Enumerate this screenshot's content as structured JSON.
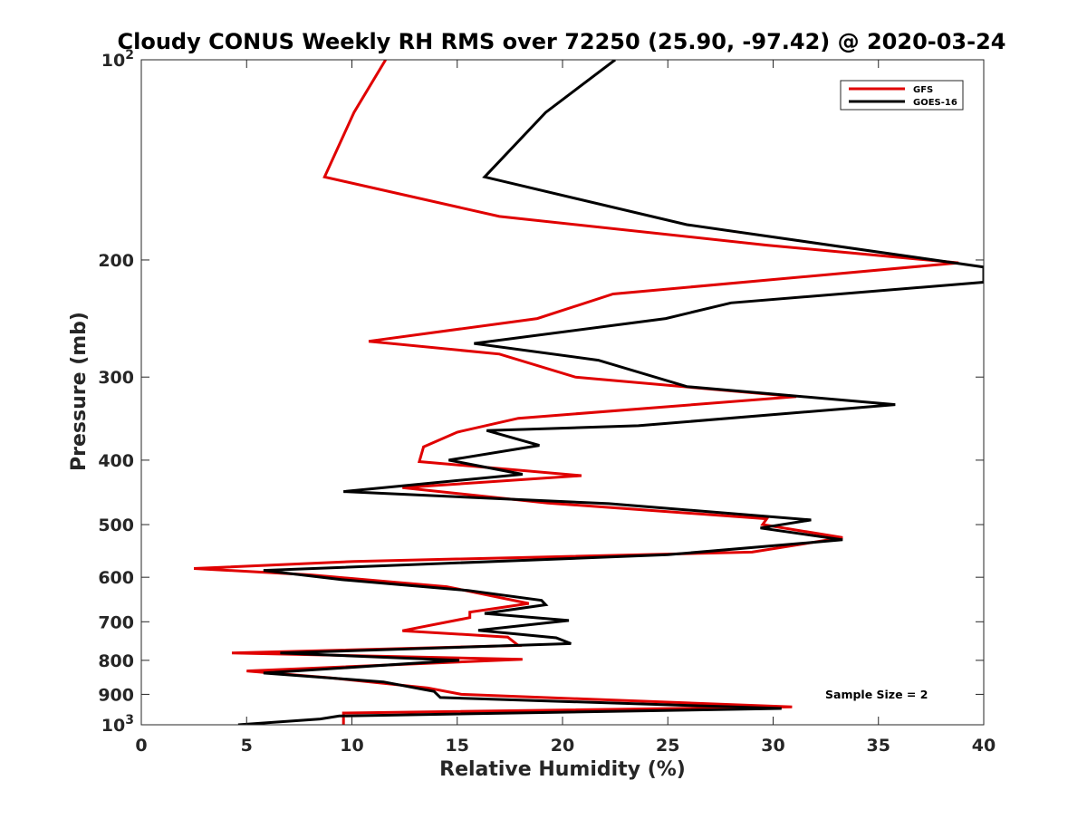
{
  "chart_data": {
    "type": "line",
    "title": "Cloudy CONUS Weekly RH RMS over 72250 (25.90, -97.42) @ 2020-03-24",
    "xlabel": "Relative Humidity (%)",
    "ylabel": "Pressure (mb)",
    "xlim": [
      0,
      40
    ],
    "ylim": [
      100,
      1000
    ],
    "y_scale": "log",
    "y_reversed": true,
    "x_ticks": [
      "0",
      "5",
      "10",
      "15",
      "20",
      "25",
      "30",
      "35",
      "40"
    ],
    "y_ticks": [
      {
        "value": 100,
        "label": "10",
        "sup": "2"
      },
      {
        "value": 200,
        "label": "200",
        "sup": ""
      },
      {
        "value": 300,
        "label": "300",
        "sup": ""
      },
      {
        "value": 400,
        "label": "400",
        "sup": ""
      },
      {
        "value": 500,
        "label": "500",
        "sup": ""
      },
      {
        "value": 600,
        "label": "600",
        "sup": ""
      },
      {
        "value": 700,
        "label": "700",
        "sup": ""
      },
      {
        "value": 800,
        "label": "800",
        "sup": ""
      },
      {
        "value": 900,
        "label": "900",
        "sup": ""
      },
      {
        "value": 1000,
        "label": "10",
        "sup": "3"
      }
    ],
    "grid": false,
    "legend_position": "top-right",
    "annotation": "Sample Size = 2",
    "series": [
      {
        "name": "GFS",
        "color": "#e00000",
        "points": [
          [
            11.6,
            100
          ],
          [
            10.1,
            120
          ],
          [
            8.7,
            150
          ],
          [
            17,
            172
          ],
          [
            29.7,
            190
          ],
          [
            38.8,
            202
          ],
          [
            22.4,
            225
          ],
          [
            18.8,
            245
          ],
          [
            10.8,
            265
          ],
          [
            17,
            277
          ],
          [
            20.6,
            300
          ],
          [
            31.1,
            321
          ],
          [
            17.9,
            346
          ],
          [
            15,
            363
          ],
          [
            13.4,
            382
          ],
          [
            13.2,
            402
          ],
          [
            20.9,
            422
          ],
          [
            12.4,
            440
          ],
          [
            19.3,
            464
          ],
          [
            29.7,
            490
          ],
          [
            29.5,
            500
          ],
          [
            33.3,
            523
          ],
          [
            29,
            550
          ],
          [
            10.1,
            568
          ],
          [
            2.5,
            582
          ],
          [
            8,
            595
          ],
          [
            14.5,
            620
          ],
          [
            18.4,
            657
          ],
          [
            15.6,
            677
          ],
          [
            15.6,
            690
          ],
          [
            12.4,
            722
          ],
          [
            17.4,
            738
          ],
          [
            17.9,
            760
          ],
          [
            4.3,
            780
          ],
          [
            18.1,
            797
          ],
          [
            5,
            830
          ],
          [
            9,
            850
          ],
          [
            13.6,
            880
          ],
          [
            15.2,
            900
          ],
          [
            30.9,
            940
          ],
          [
            9.6,
            960
          ],
          [
            9.6,
            1000
          ]
        ]
      },
      {
        "name": "GOES-16",
        "color": "#000000",
        "points": [
          [
            22.5,
            100
          ],
          [
            19.2,
            120
          ],
          [
            16.3,
            150
          ],
          [
            25.9,
            177
          ],
          [
            40,
            205
          ],
          [
            40,
            216
          ],
          [
            28,
            232
          ],
          [
            24.9,
            245
          ],
          [
            15.8,
            267
          ],
          [
            21.7,
            283
          ],
          [
            25.9,
            310
          ],
          [
            35.8,
            330
          ],
          [
            23.6,
            355
          ],
          [
            16.4,
            361
          ],
          [
            18.9,
            380
          ],
          [
            14.6,
            400
          ],
          [
            18.1,
            420
          ],
          [
            9.6,
            446
          ],
          [
            22.2,
            465
          ],
          [
            31.8,
            492
          ],
          [
            29.4,
            506
          ],
          [
            33.3,
            527
          ],
          [
            25,
            555
          ],
          [
            5.8,
            586
          ],
          [
            9.5,
            605
          ],
          [
            15.5,
            628
          ],
          [
            19,
            650
          ],
          [
            19.2,
            660
          ],
          [
            16.3,
            680
          ],
          [
            20.3,
            697
          ],
          [
            16,
            721
          ],
          [
            19.7,
            740
          ],
          [
            20.4,
            755
          ],
          [
            6.6,
            780
          ],
          [
            15.1,
            800
          ],
          [
            5.8,
            836
          ],
          [
            11.5,
            862
          ],
          [
            13.9,
            891
          ],
          [
            14.2,
            910
          ],
          [
            30.4,
            945
          ],
          [
            9.4,
            970
          ],
          [
            8.5,
            980
          ],
          [
            4.6,
            1000
          ]
        ]
      }
    ]
  }
}
